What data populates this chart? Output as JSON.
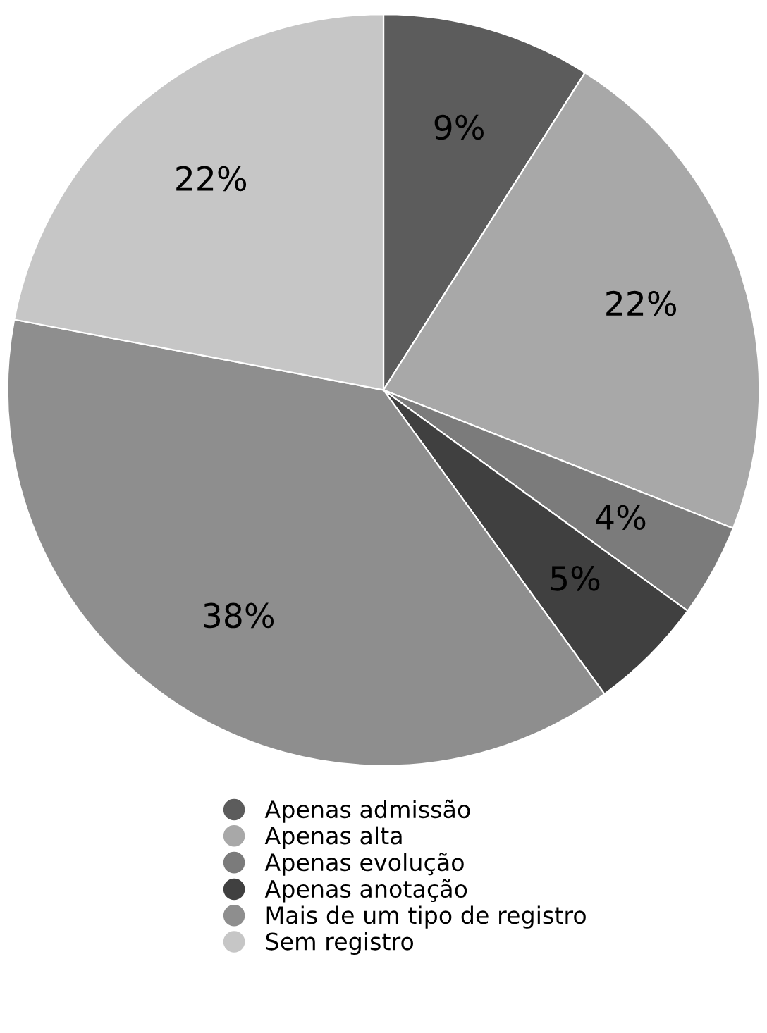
{
  "chart_data": {
    "type": "pie",
    "categories": [
      "Apenas admissão",
      "Apenas alta",
      "Apenas evolução",
      "Apenas anotação",
      "Mais de um tipo de registro",
      "Sem registro"
    ],
    "values": [
      9,
      22,
      4,
      5,
      38,
      22
    ],
    "colors": [
      "#5c5c5c",
      "#a8a8a8",
      "#7b7b7b",
      "#404040",
      "#8e8e8e",
      "#c6c6c6"
    ],
    "value_labels": [
      "9%",
      "22%",
      "4%",
      "5%",
      "38%",
      "22%"
    ],
    "legend": "bottom"
  }
}
